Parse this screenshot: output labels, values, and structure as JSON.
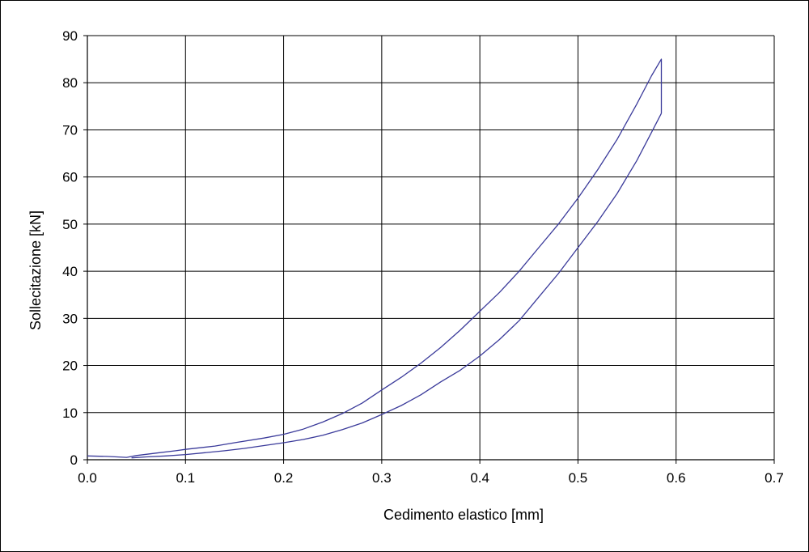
{
  "chart_data": {
    "type": "line",
    "title": "",
    "xlabel": "Cedimento elastico [mm]",
    "ylabel": "Sollecitazione [kN]",
    "xlim": [
      0.0,
      0.7
    ],
    "ylim": [
      0,
      90
    ],
    "xticks": [
      0.0,
      0.1,
      0.2,
      0.3,
      0.4,
      0.5,
      0.6,
      0.7
    ],
    "xtick_labels": [
      "0.0",
      "0.1",
      "0.2",
      "0.3",
      "0.4",
      "0.5",
      "0.6",
      "0.7"
    ],
    "yticks": [
      0,
      10,
      20,
      30,
      40,
      50,
      60,
      70,
      80,
      90
    ],
    "ytick_labels": [
      "0",
      "10",
      "20",
      "30",
      "40",
      "50",
      "60",
      "70",
      "80",
      "90"
    ],
    "grid": true,
    "legend": "none",
    "line_color": "#3a3a9a",
    "series": [
      {
        "x": [
          0.0,
          0.02,
          0.04,
          0.05,
          0.07,
          0.09,
          0.1,
          0.13,
          0.15,
          0.18,
          0.2,
          0.22,
          0.24,
          0.26,
          0.28,
          0.3,
          0.32,
          0.34,
          0.36,
          0.38,
          0.4,
          0.42,
          0.44,
          0.46,
          0.48,
          0.5,
          0.52,
          0.54,
          0.56,
          0.575,
          0.585,
          0.585
        ],
        "y": [
          0.8,
          0.7,
          0.5,
          0.9,
          1.4,
          1.9,
          2.2,
          2.9,
          3.6,
          4.6,
          5.4,
          6.5,
          8.0,
          9.8,
          12.0,
          14.8,
          17.5,
          20.5,
          23.8,
          27.5,
          31.5,
          35.5,
          40.0,
          45.0,
          50.0,
          55.5,
          61.5,
          68.0,
          75.5,
          81.5,
          85.0,
          73.5
        ]
      },
      {
        "x": [
          0.585,
          0.575,
          0.56,
          0.54,
          0.52,
          0.5,
          0.48,
          0.46,
          0.44,
          0.42,
          0.4,
          0.38,
          0.36,
          0.34,
          0.32,
          0.3,
          0.28,
          0.26,
          0.24,
          0.22,
          0.2,
          0.18,
          0.16,
          0.14,
          0.12,
          0.1,
          0.08,
          0.06,
          0.045
        ],
        "y": [
          73.5,
          69.5,
          63.5,
          56.5,
          50.5,
          45.0,
          39.5,
          34.5,
          29.5,
          25.5,
          22.0,
          19.0,
          16.5,
          13.8,
          11.5,
          9.6,
          7.8,
          6.4,
          5.2,
          4.3,
          3.6,
          3.0,
          2.4,
          1.9,
          1.5,
          1.1,
          0.8,
          0.6,
          0.4
        ]
      }
    ]
  }
}
